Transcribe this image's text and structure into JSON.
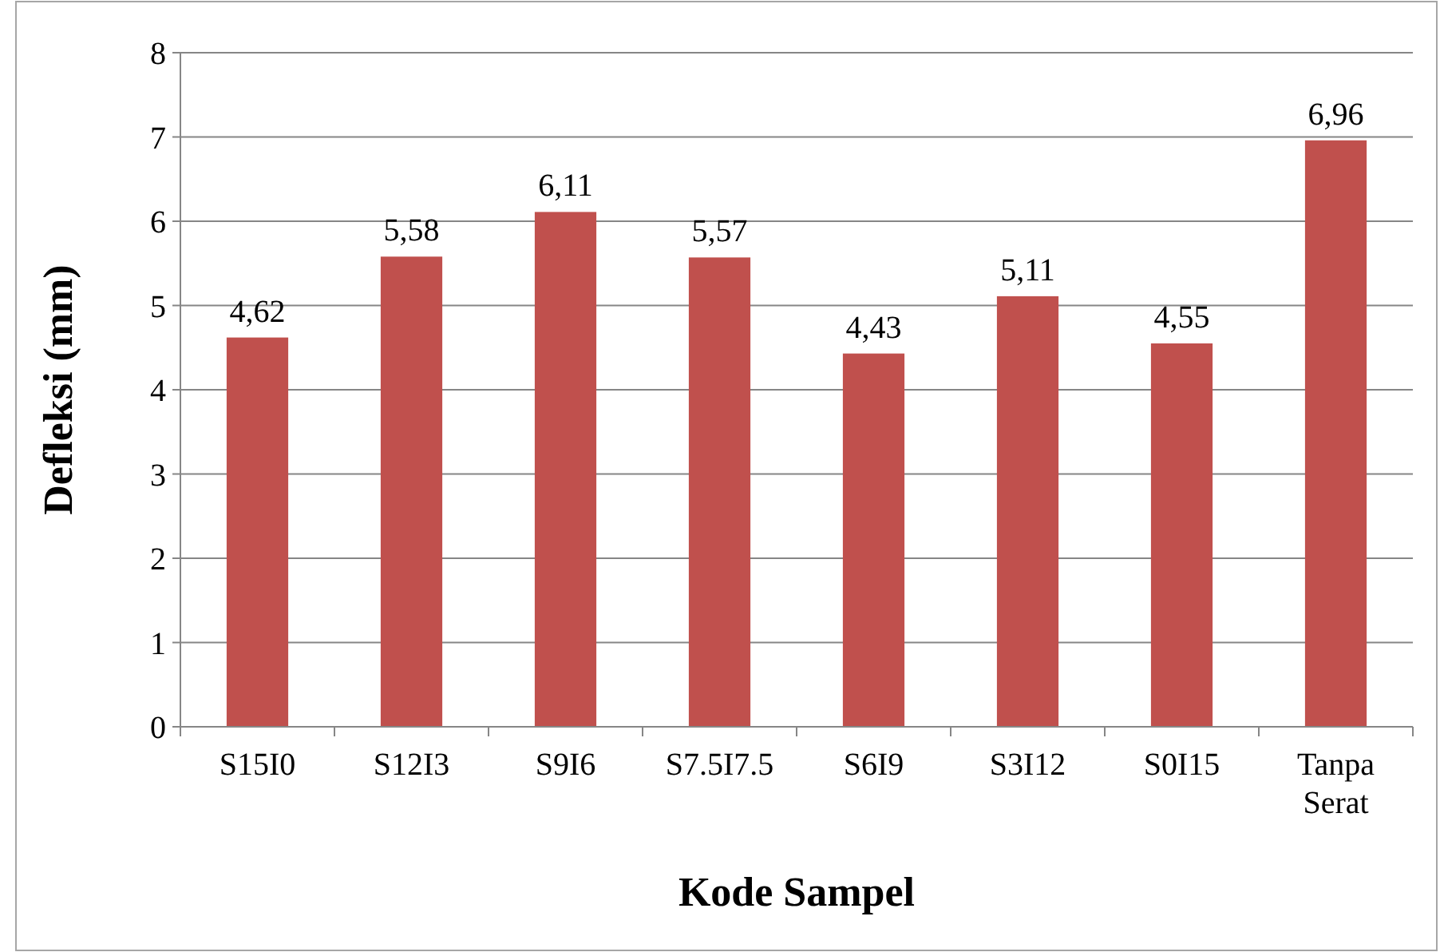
{
  "chart_data": {
    "type": "bar",
    "xlabel": "Kode Sampel",
    "ylabel": "Defleksi (mm)",
    "categories": [
      "S15I0",
      "S12I3",
      "S9I6",
      "S7.5I7.5",
      "S6I9",
      "S3I12",
      "S0I15",
      "Tanpa Serat"
    ],
    "values": [
      4.62,
      5.58,
      6.11,
      5.57,
      4.43,
      5.11,
      4.55,
      6.96
    ],
    "value_labels": [
      "4,62",
      "5,58",
      "6,11",
      "5,57",
      "4,43",
      "5,11",
      "4,55",
      "6,96"
    ],
    "color": "#c0504d",
    "ylim": [
      0,
      8
    ],
    "yticks": [
      0,
      1,
      2,
      3,
      4,
      5,
      6,
      7,
      8
    ],
    "grid": "y"
  }
}
